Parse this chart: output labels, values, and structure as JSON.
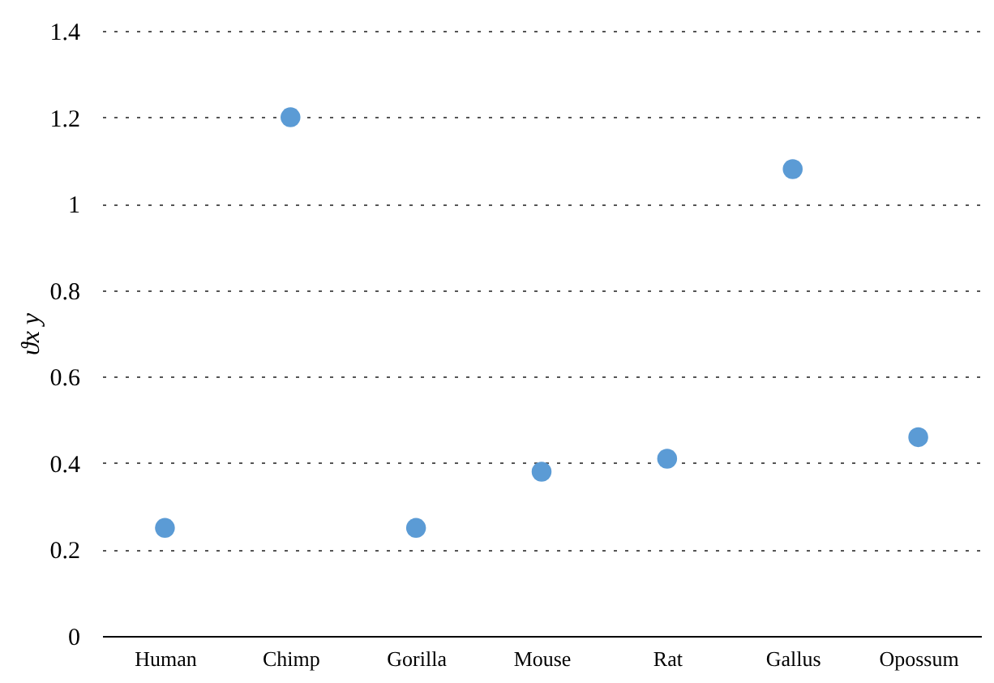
{
  "chart_data": {
    "type": "scatter",
    "ylabel": "ϑx y",
    "categories": [
      "Human",
      "Chimp",
      "Gorilla",
      "Mouse",
      "Rat",
      "Gallus",
      "Opossum"
    ],
    "series": [
      {
        "color": "#5b9bd5",
        "values": [
          0.25,
          1.2,
          0.25,
          0.38,
          0.41,
          1.08,
          0.46
        ]
      }
    ],
    "ylim": [
      0,
      1.4
    ],
    "yticks": [
      0,
      0.2,
      0.4,
      0.6,
      0.8,
      1,
      1.2,
      1.4
    ],
    "grid": "y",
    "marker": "circle",
    "legend": false
  }
}
